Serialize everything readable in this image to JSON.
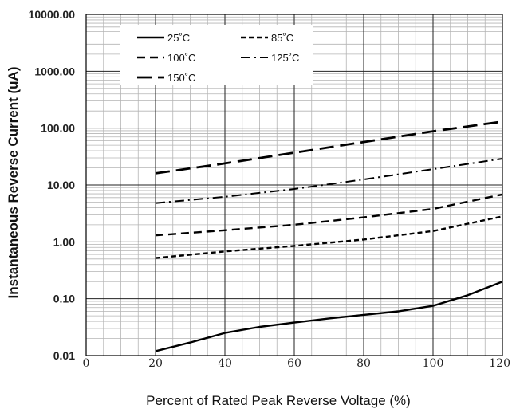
{
  "chart_data": {
    "type": "line",
    "title": "",
    "xlabel": "Percent of  Rated Peak Reverse Voltage (%)",
    "ylabel": "Instantaneous Reverse Current (uA)",
    "xlim": [
      0,
      120
    ],
    "ylim": [
      0.01,
      10000
    ],
    "yscale": "log",
    "x_ticks": [
      0,
      20,
      40,
      60,
      80,
      100,
      120
    ],
    "x_tick_labels": [
      "0",
      "20",
      "40",
      "60",
      "80",
      "100",
      "120"
    ],
    "y_ticks": [
      0.01,
      0.1,
      1,
      10,
      100,
      1000,
      10000
    ],
    "y_tick_labels": [
      "0.01",
      "0.10",
      "1.00",
      "10.00",
      "100.00",
      "1000.00",
      "10000.00"
    ],
    "grid": true,
    "legend_position": "top-left",
    "series": [
      {
        "name": "25˚C",
        "style": "solid",
        "x": [
          20,
          30,
          40,
          50,
          60,
          70,
          80,
          90,
          100,
          110,
          120
        ],
        "y": [
          0.012,
          0.017,
          0.025,
          0.032,
          0.038,
          0.045,
          0.052,
          0.06,
          0.075,
          0.115,
          0.2
        ]
      },
      {
        "name": "85˚C",
        "style": "short-dash",
        "x": [
          20,
          40,
          60,
          80,
          100,
          120
        ],
        "y": [
          0.52,
          0.68,
          0.85,
          1.1,
          1.55,
          2.8
        ]
      },
      {
        "name": "100˚C",
        "style": "dash",
        "x": [
          20,
          40,
          60,
          80,
          100,
          120
        ],
        "y": [
          1.3,
          1.6,
          2.0,
          2.7,
          3.8,
          6.8
        ]
      },
      {
        "name": "125˚C",
        "style": "dash-dot",
        "x": [
          20,
          40,
          60,
          80,
          100,
          120
        ],
        "y": [
          4.8,
          6.2,
          8.5,
          12.5,
          19,
          29
        ]
      },
      {
        "name": "150˚C",
        "style": "long-dash",
        "x": [
          20,
          40,
          60,
          80,
          100,
          120
        ],
        "y": [
          16,
          24,
          37,
          57,
          88,
          130
        ]
      }
    ]
  }
}
